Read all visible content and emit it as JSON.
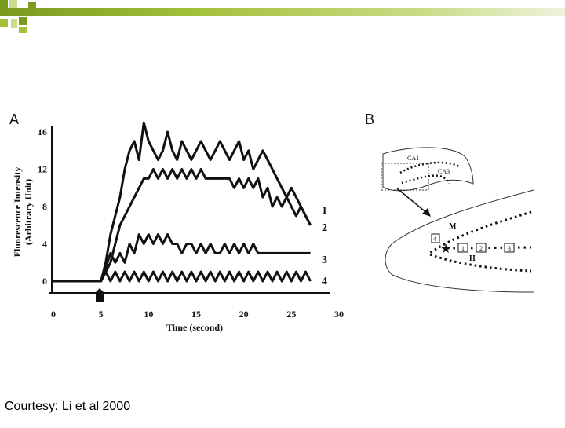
{
  "slide": {
    "accent_colors": [
      "#7a9a1e",
      "#a4c13b",
      "#c9dc87",
      "#e3edc2"
    ],
    "caption": "Courtesy: Li et al 2000"
  },
  "panel_a": {
    "label": "A",
    "chart_data": {
      "type": "line",
      "xlabel": "Time (second)",
      "ylabel_line1": "Fluorescence Intensity",
      "ylabel_line2": "(Arbitrary Unit)",
      "xlim": [
        0,
        30
      ],
      "ylim": [
        0,
        16
      ],
      "x_ticks": [
        "0",
        "5",
        "10",
        "15",
        "20",
        "25",
        "30"
      ],
      "y_ticks": [
        "0",
        "4",
        "8",
        "12",
        "16"
      ],
      "series": [
        {
          "name": "1",
          "x": [
            0,
            1,
            2,
            3,
            4,
            5,
            5.5,
            6,
            7,
            7.5,
            8,
            8.5,
            9,
            9.5,
            10,
            10.5,
            11,
            11.5,
            12,
            12.5,
            13,
            13.5,
            14,
            14.5,
            15,
            15.5,
            16,
            16.5,
            17,
            17.5,
            18,
            18.5,
            19,
            19.5,
            20,
            20.5,
            21,
            21.5,
            22,
            22.5,
            23,
            23.5,
            24,
            24.5,
            25,
            25.5,
            26,
            26.5,
            27
          ],
          "y": [
            0,
            0,
            0,
            0,
            0,
            0,
            2,
            5,
            9,
            12,
            14,
            15,
            13,
            17,
            15,
            14,
            13,
            14,
            16,
            14,
            13,
            15,
            14,
            13,
            14,
            15,
            14,
            13,
            14,
            15,
            14,
            13,
            14,
            15,
            13,
            14,
            12,
            13,
            14,
            13,
            12,
            11,
            10,
            9,
            10,
            9,
            8,
            7,
            6
          ]
        },
        {
          "name": "2",
          "x": [
            0,
            1,
            2,
            3,
            4,
            5,
            6,
            7,
            8,
            9,
            9.5,
            10,
            10.5,
            11,
            11.5,
            12,
            12.5,
            13,
            13.5,
            14,
            14.5,
            15,
            15.5,
            16,
            16.5,
            17,
            17.5,
            18,
            18.5,
            19,
            19.5,
            20,
            20.5,
            21,
            21.5,
            22,
            22.5,
            23,
            23.5,
            24,
            24.5,
            25,
            25.5,
            26,
            26.5,
            27
          ],
          "y": [
            0,
            0,
            0,
            0,
            0,
            0,
            2,
            6,
            8,
            10,
            11,
            11,
            12,
            11,
            12,
            11,
            12,
            11,
            12,
            11,
            12,
            11,
            12,
            11,
            11,
            11,
            11,
            11,
            11,
            10,
            11,
            10,
            11,
            10,
            11,
            9,
            10,
            8,
            9,
            8,
            9,
            8,
            7,
            8,
            7,
            6
          ]
        },
        {
          "name": "3",
          "x": [
            0,
            1,
            2,
            3,
            4,
            5,
            6,
            6.5,
            7,
            7.5,
            8,
            8.5,
            9,
            9.5,
            10,
            10.5,
            11,
            11.5,
            12,
            12.5,
            13,
            13.5,
            14,
            14.5,
            15,
            15.5,
            16,
            16.5,
            17,
            17.5,
            18,
            18.5,
            19,
            19.5,
            20,
            20.5,
            21,
            21.5,
            22,
            22.5,
            23,
            23.5,
            24,
            24.5,
            25,
            25.5,
            26,
            26.5,
            27
          ],
          "y": [
            0,
            0,
            0,
            0,
            0,
            0,
            3,
            2,
            3,
            2,
            4,
            3,
            5,
            4,
            5,
            4,
            5,
            4,
            5,
            4,
            4,
            3,
            4,
            4,
            3,
            4,
            3,
            4,
            3,
            3,
            4,
            3,
            4,
            3,
            4,
            3,
            4,
            3,
            3,
            3,
            3,
            3,
            3,
            3,
            3,
            3,
            3,
            3,
            3
          ]
        },
        {
          "name": "4",
          "x": [
            0,
            1,
            2,
            3,
            4,
            5,
            5.5,
            6,
            6.5,
            7,
            7.5,
            8,
            8.5,
            9,
            9.5,
            10,
            10.5,
            11,
            11.5,
            12,
            12.5,
            13,
            13.5,
            14,
            14.5,
            15,
            15.5,
            16,
            16.5,
            17,
            17.5,
            18,
            18.5,
            19,
            19.5,
            20,
            20.5,
            21,
            21.5,
            22,
            22.5,
            23,
            23.5,
            24,
            24.5,
            25,
            25.5,
            26,
            26.5,
            27
          ],
          "y": [
            0,
            0,
            0,
            0,
            0,
            0,
            1,
            0,
            1,
            0,
            1,
            0,
            1,
            0,
            1,
            0,
            1,
            0,
            1,
            0,
            1,
            0,
            1,
            0,
            1,
            0,
            1,
            0,
            1,
            0,
            1,
            0,
            1,
            0,
            1,
            0,
            1,
            0,
            1,
            0,
            1,
            0,
            1,
            0,
            1,
            0,
            1,
            0,
            1,
            0
          ]
        }
      ]
    }
  },
  "panel_b": {
    "label": "B",
    "labels": {
      "ca1": "CA1",
      "ca3": "CA3",
      "m": "M",
      "h": "H",
      "site4": "4",
      "site1": "1",
      "site2": "2",
      "site3": "3"
    }
  }
}
